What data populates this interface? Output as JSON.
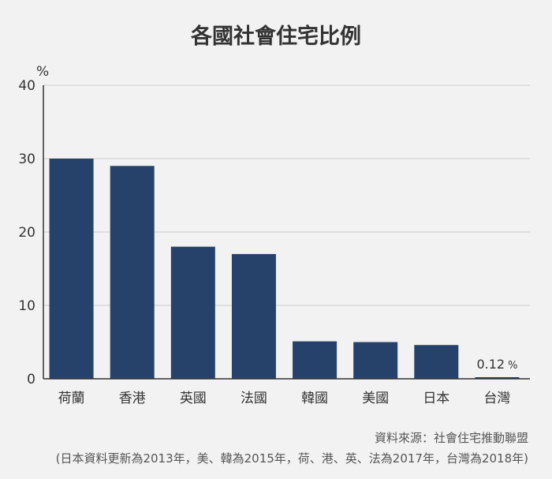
{
  "chart_data": {
    "type": "bar",
    "title": "各國社會住宅比例",
    "ylabel": "%",
    "ylim": [
      0,
      40
    ],
    "yticks": [
      0,
      10,
      20,
      30,
      40
    ],
    "grid": true,
    "categories": [
      "荷蘭",
      "香港",
      "英國",
      "法國",
      "韓國",
      "美國",
      "日本",
      "台灣"
    ],
    "values": [
      30,
      29,
      18,
      17,
      5.1,
      5,
      4.6,
      0.12
    ],
    "data_labels": [
      {
        "index": 7,
        "text": "0.12",
        "unit": "%"
      }
    ],
    "colors": {
      "bar": "#26426b",
      "grid": "#cccccc",
      "axis": "#333333",
      "background": "#f2f2f2"
    }
  },
  "footer": {
    "source": "資料來源：社會住宅推動聯盟",
    "note": "(日本資料更新為2013年，美、韓為2015年，荷、港、英、法為2017年，台灣為2018年)"
  }
}
